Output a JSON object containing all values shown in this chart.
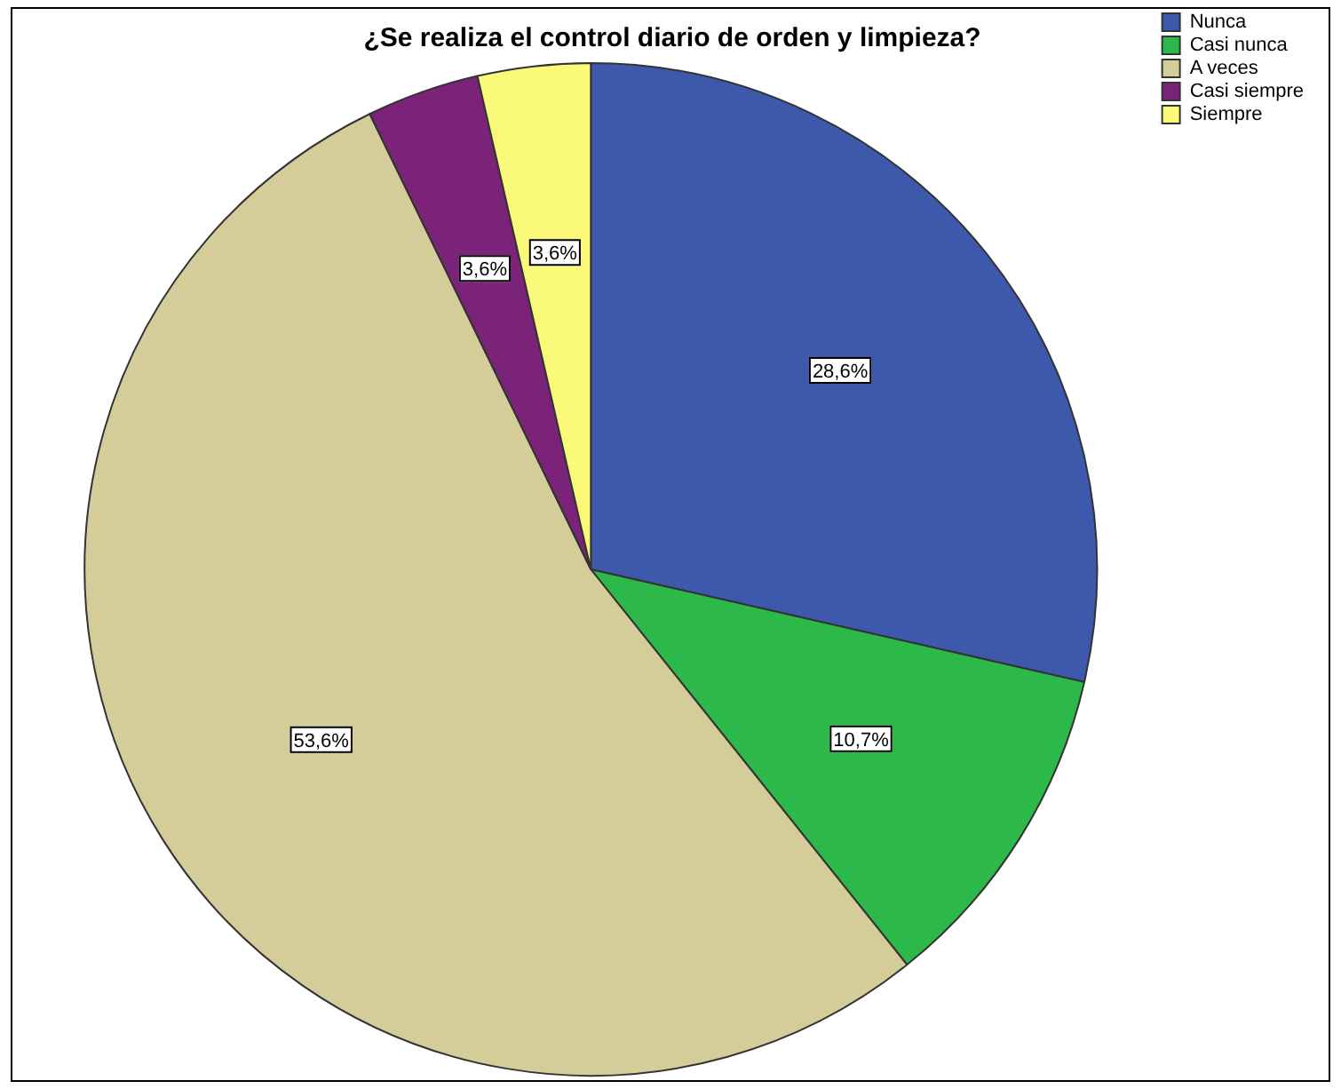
{
  "chart_data": {
    "type": "pie",
    "title": "¿Se realiza el control diario de orden y limpieza?",
    "categories": [
      "Nunca",
      "Casi nunca",
      "A veces",
      "Casi siempre",
      "Siempre"
    ],
    "values": [
      28.6,
      10.7,
      53.6,
      3.6,
      3.6
    ],
    "value_labels": [
      "28,6%",
      "10,7%",
      "53,6%",
      "3,6%",
      "3,6%"
    ],
    "colors": [
      "#3e58ac",
      "#2db84a",
      "#d4cc99",
      "#7a2378",
      "#fbf97a"
    ],
    "legend": "top right"
  }
}
